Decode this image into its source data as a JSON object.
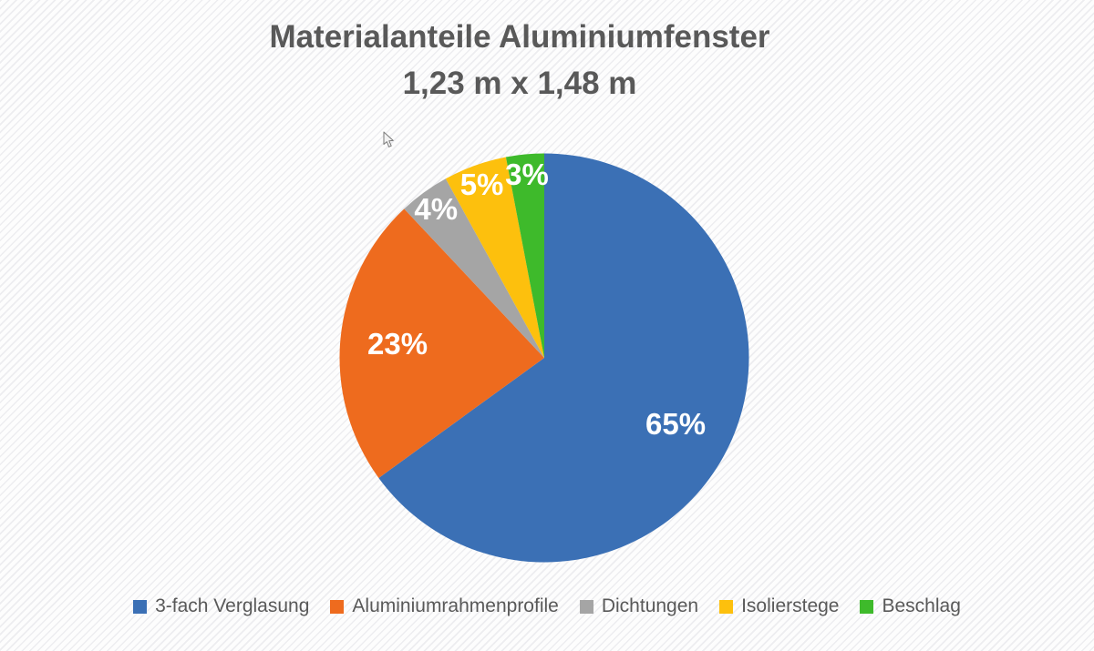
{
  "chart": {
    "title_line1": "Materialanteile Aluminiumfenster",
    "title_line2": "1,23 m x 1,48 m",
    "title_color": "#595959",
    "legend_text_color": "#595959",
    "background_color": "#fdfdfd",
    "background_stripe_color": "#e4e4e8"
  },
  "chart_data": {
    "type": "pie",
    "title": "Materialanteile Aluminiumfenster 1,23 m x 1,48 m",
    "categories": [
      "3-fach Verglasung",
      "Aluminiumrahmenprofile",
      "Dichtungen",
      "Isolierstege",
      "Beschlag"
    ],
    "values": [
      65,
      23,
      4,
      5,
      3
    ],
    "unit": "%",
    "data_labels": [
      "65%",
      "23%",
      "4%",
      "5%",
      "3%"
    ],
    "colors": [
      "#3B70B5",
      "#EE6B1E",
      "#A5A5A5",
      "#FDC00D",
      "#3EBA2B"
    ],
    "label_color": "#FFFFFF",
    "start_angle_deg": 0,
    "direction": "clockwise",
    "legend_position": "bottom",
    "grid": false
  },
  "icons": {
    "cursor": "arrow-pointer"
  }
}
